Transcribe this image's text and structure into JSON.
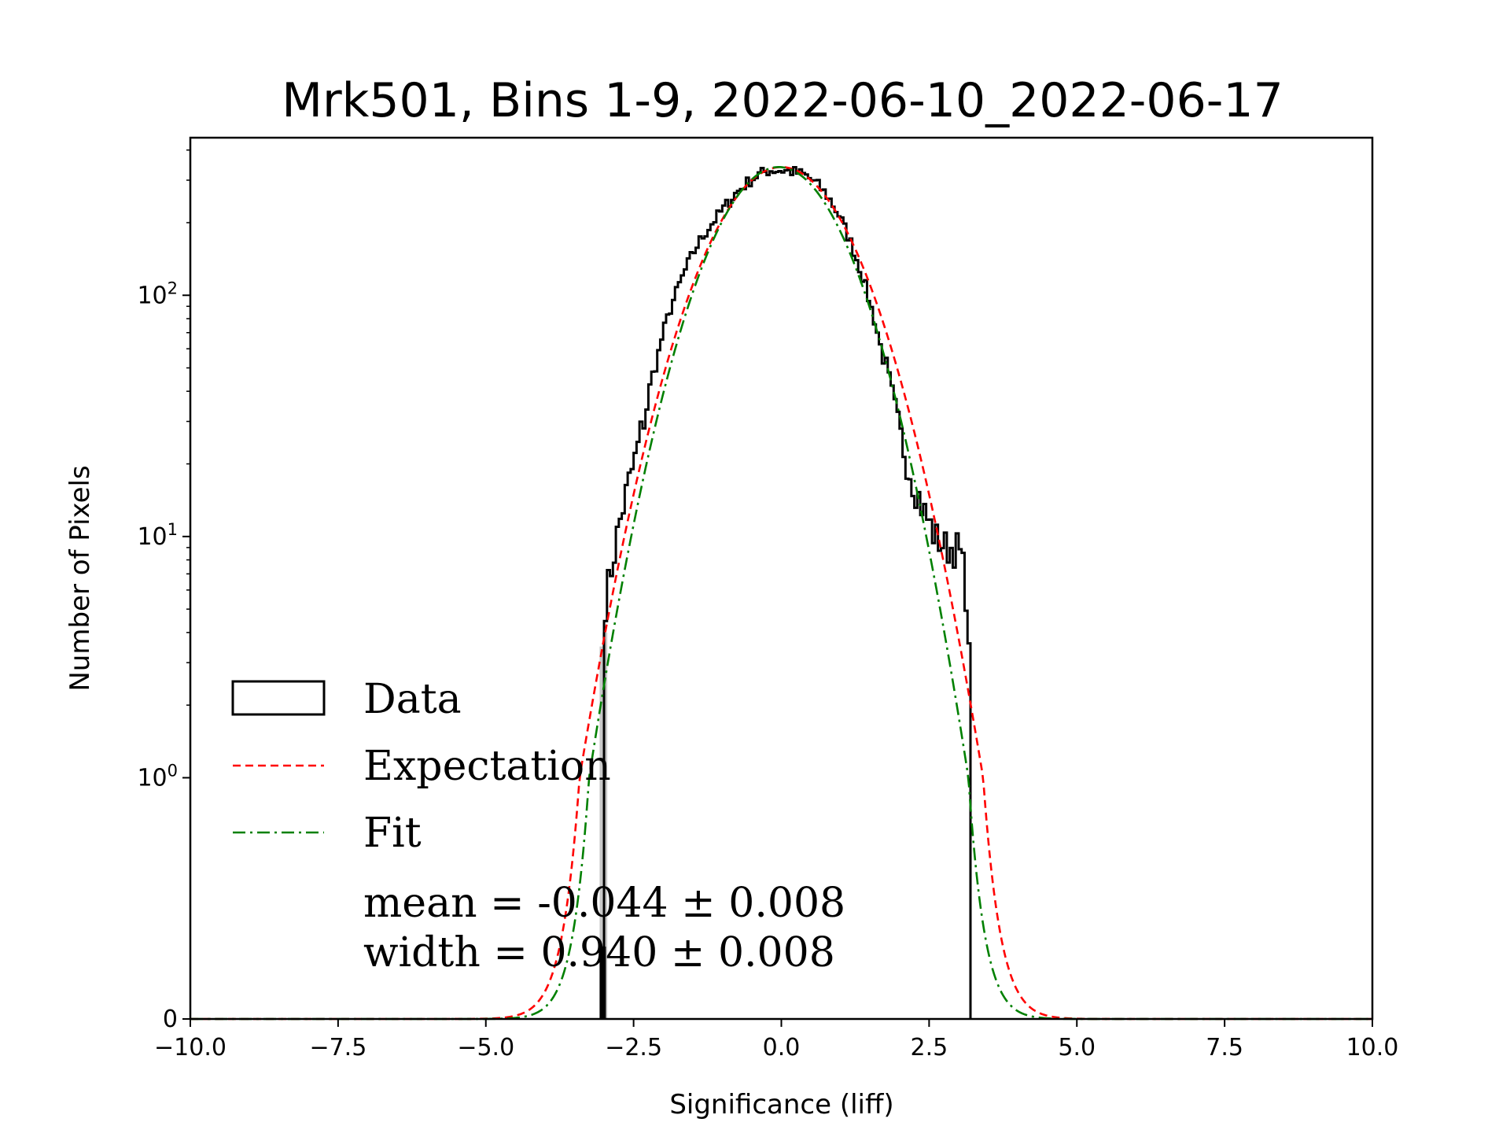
{
  "colors": {
    "data": "#000000",
    "expectation": "#ff0000",
    "fit": "#008000",
    "stats": "#008000",
    "gray_bin": "#c8c8c8"
  },
  "chart_data": {
    "type": "histogram",
    "title": "Mrk501, Bins 1-9, 2022-06-10_2022-06-17",
    "xlabel": "Significance (liff)",
    "ylabel": "Number of Pixels",
    "xlim": [
      -10.0,
      10.0
    ],
    "yscale": "symlog",
    "symlog_linthresh": 1,
    "ylim_top": 450,
    "x_ticks": [
      -10.0,
      -7.5,
      -5.0,
      -2.5,
      0.0,
      2.5,
      5.0,
      7.5,
      10.0
    ],
    "x_tick_labels": [
      "−10.0",
      "−7.5",
      "−5.0",
      "−2.5",
      "0.0",
      "2.5",
      "5.0",
      "7.5",
      "10.0"
    ],
    "y_ticks": [
      {
        "value": 0,
        "base": "0",
        "exp": ""
      },
      {
        "value": 1,
        "base": "10",
        "exp": "0"
      },
      {
        "value": 10,
        "base": "10",
        "exp": "1"
      },
      {
        "value": 100,
        "base": "10",
        "exp": "2"
      }
    ],
    "legend": {
      "location": "center-left",
      "entries": [
        {
          "label": "Data",
          "style": "step"
        },
        {
          "label": "Expectation",
          "style": "dashed"
        },
        {
          "label": "Fit",
          "style": "dashdot"
        }
      ]
    },
    "annotations": {
      "mean": "mean = -0.044 ± 0.008",
      "width": "width = 0.940 ± 0.008"
    },
    "data_range": [
      -3.0,
      3.2
    ],
    "bin_width": 0.05,
    "data_curve": [
      [
        -3.0,
        5
      ],
      [
        -2.85,
        8
      ],
      [
        -2.75,
        11
      ],
      [
        -2.6,
        16
      ],
      [
        -2.45,
        22
      ],
      [
        -2.3,
        33
      ],
      [
        -2.15,
        48
      ],
      [
        -2.0,
        70
      ],
      [
        -1.85,
        92
      ],
      [
        -1.7,
        115
      ],
      [
        -1.55,
        140
      ],
      [
        -1.4,
        165
      ],
      [
        -1.2,
        195
      ],
      [
        -1.0,
        225
      ],
      [
        -0.8,
        260
      ],
      [
        -0.6,
        290
      ],
      [
        -0.4,
        315
      ],
      [
        -0.2,
        330
      ],
      [
        0.0,
        330
      ],
      [
        0.2,
        325
      ],
      [
        0.4,
        315
      ],
      [
        0.6,
        290
      ],
      [
        0.8,
        255
      ],
      [
        1.0,
        210
      ],
      [
        1.2,
        160
      ],
      [
        1.4,
        115
      ],
      [
        1.6,
        75
      ],
      [
        1.8,
        45
      ],
      [
        2.0,
        27
      ],
      [
        2.2,
        18
      ],
      [
        2.4,
        13
      ],
      [
        2.6,
        10
      ],
      [
        2.8,
        9
      ],
      [
        3.0,
        9
      ],
      [
        3.1,
        7
      ],
      [
        3.15,
        5
      ],
      [
        3.2,
        2
      ]
    ],
    "expectation": {
      "mean": 0.0,
      "sigma": 1.0,
      "amplitude": 340
    },
    "fit": {
      "mean": -0.044,
      "sigma": 0.94,
      "amplitude": 340
    },
    "gray_bins": [
      {
        "x": -3.05,
        "value": 3.5
      },
      {
        "x": -3.0,
        "value": 4
      }
    ],
    "black_spikes": [
      {
        "x": -3.05,
        "value": 0.3
      }
    ]
  }
}
